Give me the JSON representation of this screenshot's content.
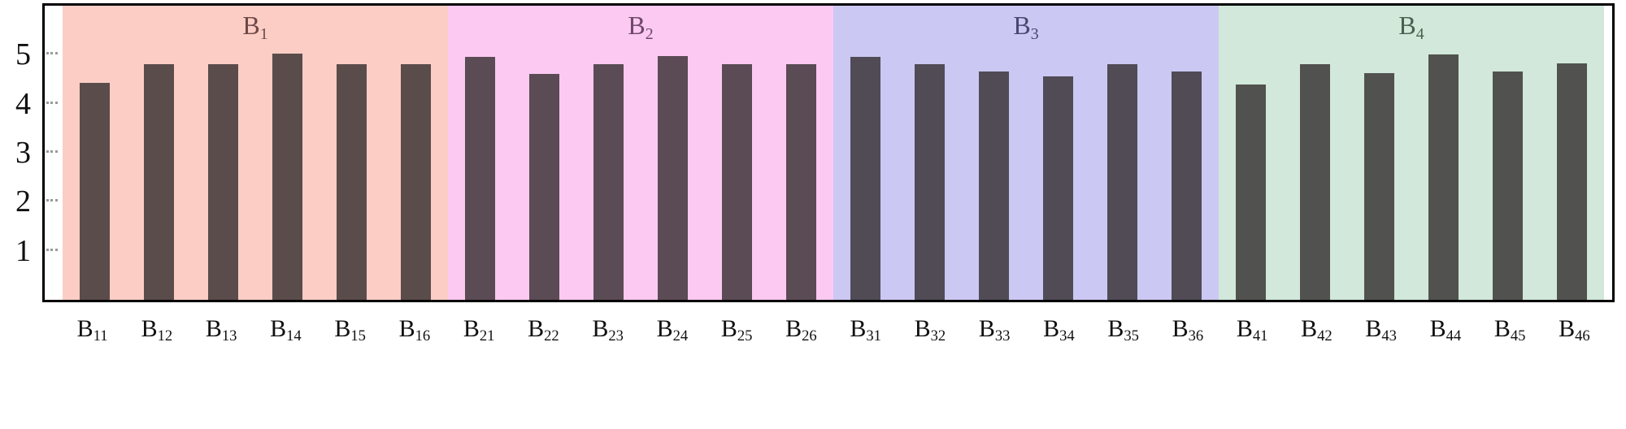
{
  "chart_data": {
    "type": "bar",
    "title": "",
    "xlabel": "",
    "ylabel": "",
    "ylim": [
      0,
      6
    ],
    "yticks": [
      1,
      2,
      3,
      4,
      5
    ],
    "grid": false,
    "legend": "none",
    "bar_color": "rgba(45, 40, 40, 0.78)",
    "groups": [
      {
        "name": "B1",
        "name_base": "B",
        "name_sub": "1",
        "band_color": "#fbcdc5",
        "label_color": "#6e4848",
        "categories": [
          "B11",
          "B12",
          "B13",
          "B14",
          "B15",
          "B16"
        ],
        "cat_base": "B",
        "cat_subs": [
          "11",
          "12",
          "13",
          "14",
          "15",
          "16"
        ],
        "values": [
          4.42,
          4.8,
          4.8,
          5.02,
          4.8,
          4.8
        ]
      },
      {
        "name": "B2",
        "name_base": "B",
        "name_sub": "2",
        "band_color": "#fbc9f2",
        "label_color": "#6e4868",
        "categories": [
          "B21",
          "B22",
          "B23",
          "B24",
          "B25",
          "B26"
        ],
        "cat_base": "B",
        "cat_subs": [
          "21",
          "22",
          "23",
          "24",
          "25",
          "26"
        ],
        "values": [
          4.95,
          4.6,
          4.8,
          4.98,
          4.8,
          4.8
        ]
      },
      {
        "name": "B3",
        "name_base": "B",
        "name_sub": "3",
        "band_color": "#cbc8f3",
        "label_color": "#48486e",
        "categories": [
          "B31",
          "B32",
          "B33",
          "B34",
          "B35",
          "B36"
        ],
        "cat_base": "B",
        "cat_subs": [
          "31",
          "32",
          "33",
          "34",
          "35",
          "36"
        ],
        "values": [
          4.95,
          4.8,
          4.65,
          4.55,
          4.8,
          4.65
        ]
      },
      {
        "name": "B4",
        "name_base": "B",
        "name_sub": "4",
        "band_color": "#d2e8da",
        "label_color": "#48604e",
        "categories": [
          "B41",
          "B42",
          "B43",
          "B44",
          "B45",
          "B46"
        ],
        "cat_base": "B",
        "cat_subs": [
          "41",
          "42",
          "43",
          "44",
          "45",
          "46"
        ],
        "values": [
          4.4,
          4.8,
          4.62,
          5.0,
          4.65,
          4.82
        ]
      }
    ]
  }
}
